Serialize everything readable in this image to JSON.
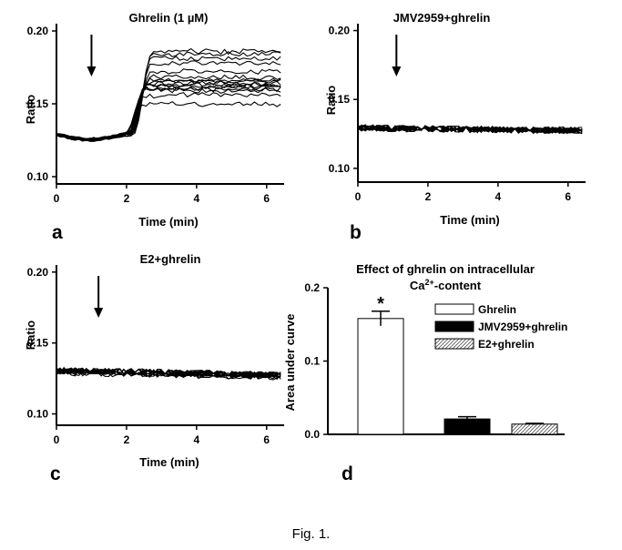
{
  "caption": "Fig. 1.",
  "chart_data": [
    {
      "panel": "a",
      "type": "line",
      "title": "Ghrelin (1 µM)",
      "xlabel": "Time (min)",
      "ylabel": "Ratio",
      "xlim": [
        0,
        6.5
      ],
      "ylim": [
        0.095,
        0.205
      ],
      "xticks": [
        "0",
        "2",
        "4",
        "6"
      ],
      "yticks": [
        "0.10",
        "0.15",
        "0.20"
      ],
      "arrow_x": 1.0,
      "traces": {
        "count": 16,
        "baseline": 0.129,
        "onset_start": 1.8,
        "onset_end": 2.6,
        "plateaus": [
          0.15,
          0.156,
          0.159,
          0.16,
          0.161,
          0.162,
          0.163,
          0.164,
          0.165,
          0.166,
          0.168,
          0.172,
          0.178,
          0.181,
          0.184,
          0.186
        ]
      }
    },
    {
      "panel": "b",
      "type": "line",
      "title": "JMV2959+ghrelin",
      "xlabel": "Time (min)",
      "ylabel": "Ratio",
      "xlim": [
        0,
        6.5
      ],
      "ylim": [
        0.09,
        0.205
      ],
      "xticks": [
        "0",
        "2",
        "4",
        "6"
      ],
      "yticks": [
        "0.10",
        "0.15",
        "0.20"
      ],
      "arrow_x": 1.1,
      "traces": {
        "count": 14,
        "baseline": 0.129,
        "end_level": 0.127
      }
    },
    {
      "panel": "c",
      "type": "line",
      "title": "E2+ghrelin",
      "xlabel": "Time (min)",
      "ylabel": "Ratio",
      "xlim": [
        0,
        6.5
      ],
      "ylim": [
        0.092,
        0.205
      ],
      "xticks": [
        "0",
        "2",
        "4",
        "6"
      ],
      "yticks": [
        "0.10",
        "0.15",
        "0.20"
      ],
      "arrow_x": 1.2,
      "traces": {
        "count": 14,
        "baseline": 0.13,
        "end_level": 0.127
      }
    },
    {
      "panel": "d",
      "type": "bar",
      "title_line1": "Effect of ghrelin on intracellular",
      "title_line2_prefix": "Ca",
      "title_line2_sup": "2+",
      "title_line2_suffix": "-content",
      "xlabel": "",
      "ylabel": "Area under curve",
      "ylim": [
        0,
        0.2
      ],
      "yticks": [
        "0.0",
        "0.1",
        "0.2"
      ],
      "categories": [
        "Ghrelin",
        "JMV2959+ghrelin",
        "E2+ghrelin"
      ],
      "values": [
        0.158,
        0.021,
        0.014
      ],
      "errors": [
        0.01,
        0.003,
        0.001
      ],
      "fills": [
        "white",
        "black",
        "hatched"
      ],
      "significance": [
        "*",
        "",
        ""
      ]
    }
  ]
}
